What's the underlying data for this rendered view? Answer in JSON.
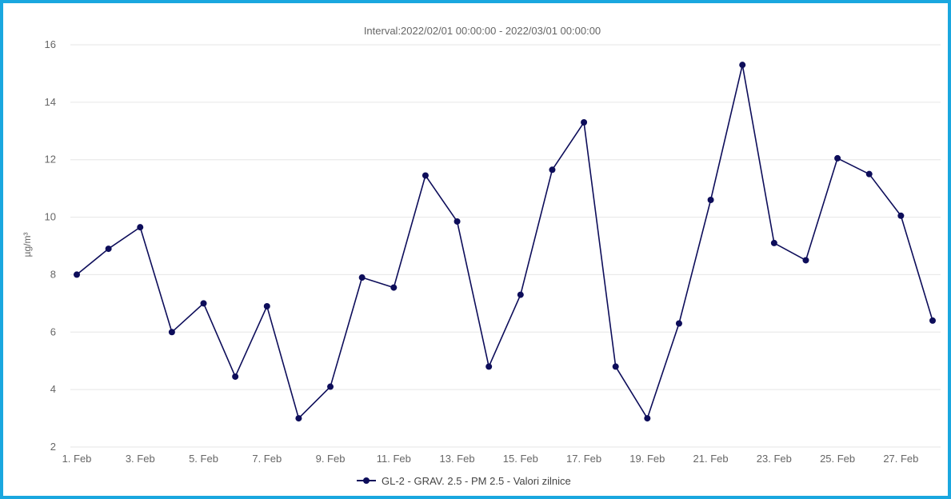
{
  "chart_data": {
    "type": "line",
    "title": "Interval:2022/02/01 00:00:00 - 2022/03/01 00:00:00",
    "ylabel": "µg/m³",
    "xlabel": "",
    "ylim": [
      2,
      16
    ],
    "yticks": [
      2,
      4,
      6,
      8,
      10,
      12,
      14,
      16
    ],
    "x": [
      1,
      2,
      3,
      4,
      5,
      6,
      7,
      8,
      9,
      10,
      11,
      12,
      13,
      14,
      15,
      16,
      17,
      18,
      19,
      20,
      21,
      22,
      23,
      24,
      25,
      26,
      27,
      28
    ],
    "xtick_labels": [
      "1. Feb",
      "3. Feb",
      "5. Feb",
      "7. Feb",
      "9. Feb",
      "11. Feb",
      "13. Feb",
      "15. Feb",
      "17. Feb",
      "19. Feb",
      "21. Feb",
      "23. Feb",
      "25. Feb",
      "27. Feb"
    ],
    "series": [
      {
        "name": "GL-2 - GRAV. 2.5 - PM 2.5 - Valori zilnice",
        "color": "#0d0d5a",
        "values": [
          8.0,
          8.9,
          9.65,
          6.0,
          7.0,
          4.45,
          6.9,
          3.0,
          4.1,
          7.9,
          7.55,
          11.45,
          9.85,
          4.8,
          7.3,
          11.65,
          13.3,
          4.8,
          3.0,
          6.3,
          10.6,
          15.3,
          9.1,
          8.5,
          12.05,
          11.5,
          10.05,
          6.4
        ]
      }
    ],
    "grid": true,
    "legend_position": "bottom-center"
  }
}
